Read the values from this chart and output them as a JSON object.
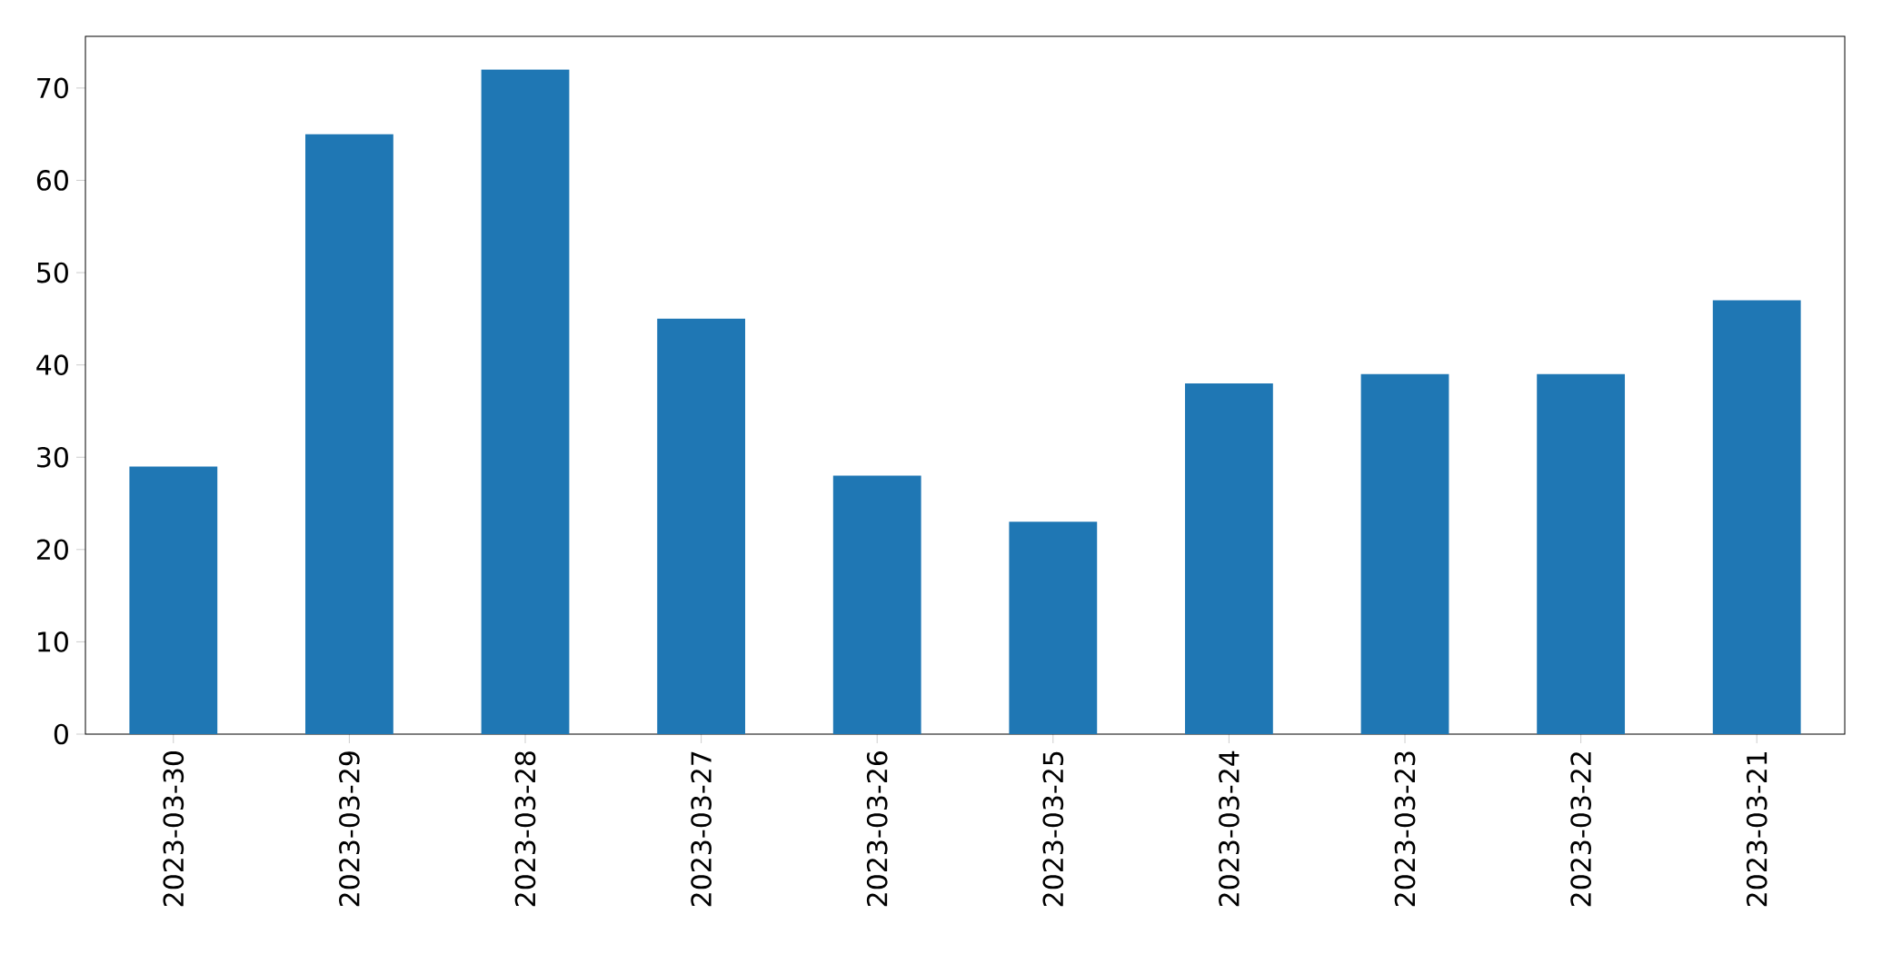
{
  "chart_data": {
    "type": "bar",
    "categories": [
      "2023-03-30",
      "2023-03-29",
      "2023-03-28",
      "2023-03-27",
      "2023-03-26",
      "2023-03-25",
      "2023-03-24",
      "2023-03-23",
      "2023-03-22",
      "2023-03-21"
    ],
    "values": [
      29,
      65,
      72,
      45,
      28,
      23,
      38,
      39,
      39,
      47
    ],
    "color": "#1f77b4",
    "ylim": [
      0,
      75.6
    ],
    "yticks": [
      0,
      10,
      20,
      30,
      40,
      50,
      60,
      70
    ]
  }
}
